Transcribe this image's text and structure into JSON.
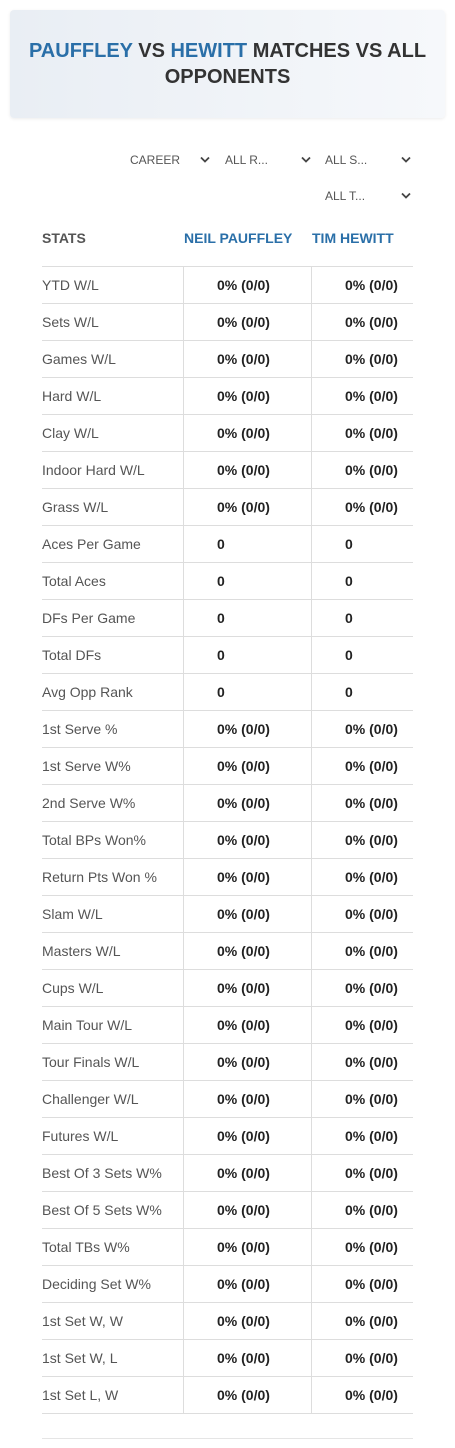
{
  "header": {
    "player1": "PAUFFLEY",
    "vs": "VS",
    "player2": "HEWITT",
    "rest": "MATCHES VS ALL OPPONENTS"
  },
  "filters": [
    "CAREER",
    "ALL R...",
    "ALL S...",
    "ALL T..."
  ],
  "table": {
    "columns": [
      "STATS",
      "NEIL PAUFFLEY",
      "TIM HEWITT"
    ],
    "rows": [
      [
        "YTD W/L",
        "0% (0/0)",
        "0% (0/0)"
      ],
      [
        "Sets W/L",
        "0% (0/0)",
        "0% (0/0)"
      ],
      [
        "Games W/L",
        "0% (0/0)",
        "0% (0/0)"
      ],
      [
        "Hard W/L",
        "0% (0/0)",
        "0% (0/0)"
      ],
      [
        "Clay W/L",
        "0% (0/0)",
        "0% (0/0)"
      ],
      [
        "Indoor Hard W/L",
        "0% (0/0)",
        "0% (0/0)"
      ],
      [
        "Grass W/L",
        "0% (0/0)",
        "0% (0/0)"
      ],
      [
        "Aces Per Game",
        "0",
        "0"
      ],
      [
        "Total Aces",
        "0",
        "0"
      ],
      [
        "DFs Per Game",
        "0",
        "0"
      ],
      [
        "Total DFs",
        "0",
        "0"
      ],
      [
        "Avg Opp Rank",
        "0",
        "0"
      ],
      [
        "1st Serve %",
        "0% (0/0)",
        "0% (0/0)"
      ],
      [
        "1st Serve W%",
        "0% (0/0)",
        "0% (0/0)"
      ],
      [
        "2nd Serve W%",
        "0% (0/0)",
        "0% (0/0)"
      ],
      [
        "Total BPs Won%",
        "0% (0/0)",
        "0% (0/0)"
      ],
      [
        "Return Pts Won %",
        "0% (0/0)",
        "0% (0/0)"
      ],
      [
        "Slam W/L",
        "0% (0/0)",
        "0% (0/0)"
      ],
      [
        "Masters W/L",
        "0% (0/0)",
        "0% (0/0)"
      ],
      [
        "Cups W/L",
        "0% (0/0)",
        "0% (0/0)"
      ],
      [
        "Main Tour W/L",
        "0% (0/0)",
        "0% (0/0)"
      ],
      [
        "Tour Finals W/L",
        "0% (0/0)",
        "0% (0/0)"
      ],
      [
        "Challenger W/L",
        "0% (0/0)",
        "0% (0/0)"
      ],
      [
        "Futures W/L",
        "0% (0/0)",
        "0% (0/0)"
      ],
      [
        "Best Of 3 Sets W%",
        "0% (0/0)",
        "0% (0/0)"
      ],
      [
        "Best Of 5 Sets W%",
        "0% (0/0)",
        "0% (0/0)"
      ],
      [
        "Total TBs W%",
        "0% (0/0)",
        "0% (0/0)"
      ],
      [
        "Deciding Set W%",
        "0% (0/0)",
        "0% (0/0)"
      ],
      [
        "1st Set W, W",
        "0% (0/0)",
        "0% (0/0)"
      ],
      [
        "1st Set W, L",
        "0% (0/0)",
        "0% (0/0)"
      ],
      [
        "1st Set L, W",
        "0% (0/0)",
        "0% (0/0)"
      ]
    ]
  }
}
